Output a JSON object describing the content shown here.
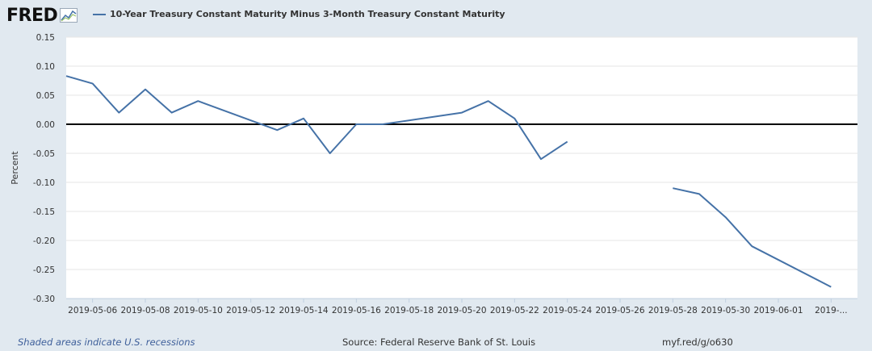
{
  "logo": {
    "text": "FRED"
  },
  "legend": {
    "label": "10-Year Treasury Constant Maturity Minus 3-Month Treasury Constant Maturity",
    "color": "#4572a7"
  },
  "footer": {
    "recession_note": "Shaded areas indicate U.S. recessions",
    "source": "Source: Federal Reserve Bank of St. Louis",
    "url": "myf.red/g/o630"
  },
  "chart_data": {
    "type": "line",
    "ylabel": "Percent",
    "ylim": [
      -0.3,
      0.15
    ],
    "yticks": [
      "0.15",
      "0.10",
      "0.05",
      "0.00",
      "-0.05",
      "-0.10",
      "-0.15",
      "-0.20",
      "-0.25",
      "-0.30"
    ],
    "ytick_values": [
      0.15,
      0.1,
      0.05,
      0.0,
      -0.05,
      -0.1,
      -0.15,
      -0.2,
      -0.25,
      -0.3
    ],
    "xlim": [
      "2019-05-05",
      "2019-06-04"
    ],
    "xticks": [
      "2019-05-06",
      "2019-05-08",
      "2019-05-10",
      "2019-05-12",
      "2019-05-14",
      "2019-05-16",
      "2019-05-18",
      "2019-05-20",
      "2019-05-22",
      "2019-05-24",
      "2019-05-26",
      "2019-05-28",
      "2019-05-30",
      "2019-06-01",
      "2019-..."
    ],
    "xtick_dates": [
      "2019-05-06",
      "2019-05-08",
      "2019-05-10",
      "2019-05-12",
      "2019-05-14",
      "2019-05-16",
      "2019-05-18",
      "2019-05-20",
      "2019-05-22",
      "2019-05-24",
      "2019-05-26",
      "2019-05-28",
      "2019-05-30",
      "2019-06-01",
      "2019-06-03"
    ],
    "zero_line": 0,
    "grid": true,
    "series": [
      {
        "name": "10-Year Treasury Constant Maturity Minus 3-Month Treasury Constant Maturity",
        "color": "#4572a7",
        "segments": [
          [
            {
              "x": "2019-05-05",
              "y": 0.083
            },
            {
              "x": "2019-05-06",
              "y": 0.07
            },
            {
              "x": "2019-05-07",
              "y": 0.02
            },
            {
              "x": "2019-05-08",
              "y": 0.06
            },
            {
              "x": "2019-05-09",
              "y": 0.02
            },
            {
              "x": "2019-05-10",
              "y": 0.04
            },
            {
              "x": "2019-05-13",
              "y": -0.01
            },
            {
              "x": "2019-05-14",
              "y": 0.01
            },
            {
              "x": "2019-05-15",
              "y": -0.05
            },
            {
              "x": "2019-05-16",
              "y": 0.0
            },
            {
              "x": "2019-05-17",
              "y": 0.0
            },
            {
              "x": "2019-05-20",
              "y": 0.02
            },
            {
              "x": "2019-05-21",
              "y": 0.04
            },
            {
              "x": "2019-05-22",
              "y": 0.01
            },
            {
              "x": "2019-05-23",
              "y": -0.06
            },
            {
              "x": "2019-05-24",
              "y": -0.03
            }
          ],
          [
            {
              "x": "2019-05-28",
              "y": -0.11
            },
            {
              "x": "2019-05-29",
              "y": -0.12
            },
            {
              "x": "2019-05-30",
              "y": -0.16
            },
            {
              "x": "2019-05-31",
              "y": -0.21
            },
            {
              "x": "2019-06-03",
              "y": -0.28
            }
          ]
        ]
      }
    ]
  }
}
